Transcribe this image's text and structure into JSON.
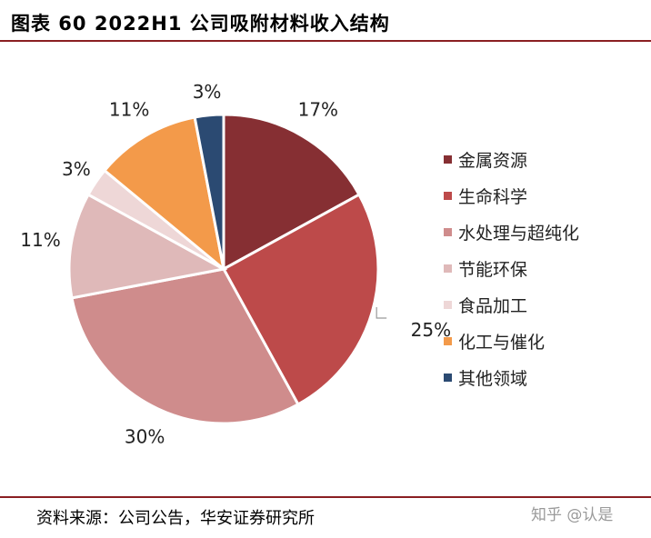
{
  "header": {
    "title": "图表 60 2022H1 公司吸附材料收入结构"
  },
  "chart_data": {
    "type": "pie",
    "title": "",
    "categories": [
      "金属资源",
      "生命科学",
      "水处理与超纯化",
      "节能环保",
      "食品加工",
      "化工与催化",
      "其他领域"
    ],
    "values": [
      17,
      25,
      30,
      11,
      3,
      11,
      3
    ],
    "labels": [
      "17%",
      "25%",
      "30%",
      "11%",
      "3%",
      "11%",
      "3%"
    ],
    "colors": [
      "#862f33",
      "#bd4a4a",
      "#cf8c8c",
      "#dfb9b9",
      "#eed7d7",
      "#f39a4a",
      "#2b4a72"
    ],
    "legend": "right",
    "start_angle_deg": 0,
    "direction": "clockwise"
  },
  "footer": {
    "source": "资料来源：公司公告，华安证券研究所",
    "watermark": "知乎 @认是"
  }
}
